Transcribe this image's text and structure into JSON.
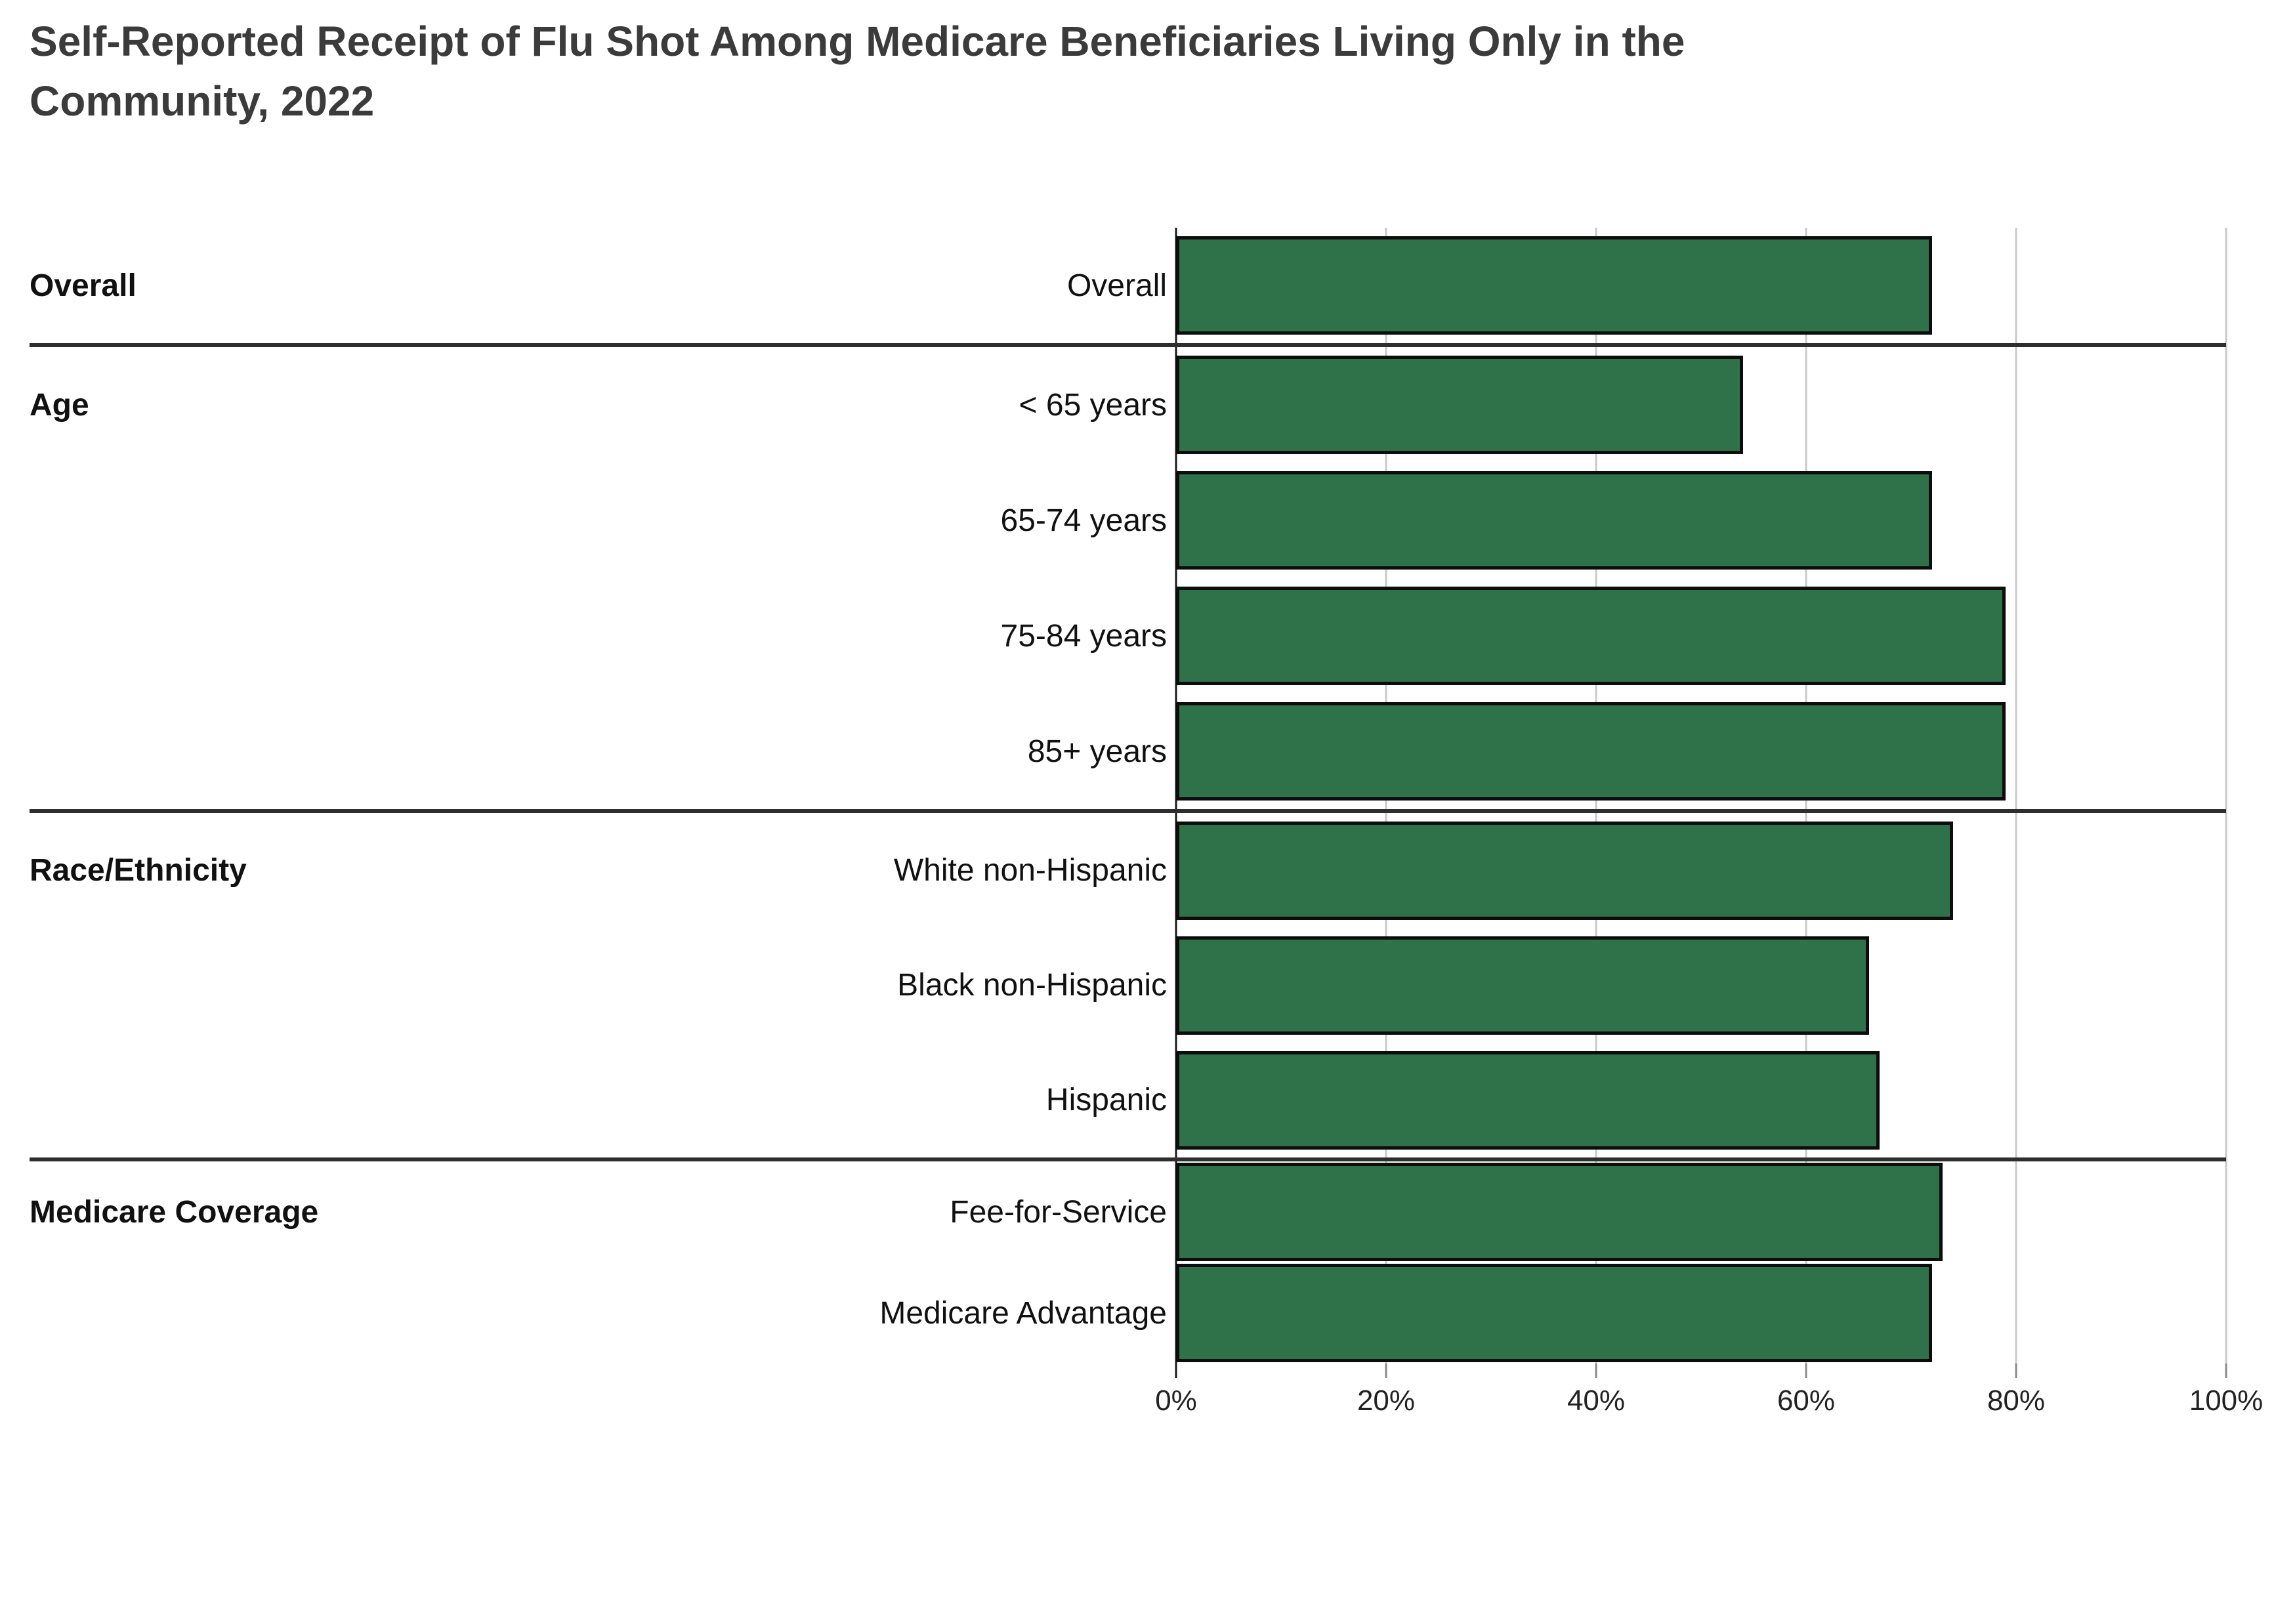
{
  "chart_data": {
    "type": "bar",
    "orientation": "horizontal",
    "title": "Self-Reported Receipt of Flu Shot Among Medicare Beneficiaries Living Only in the Community, 2022",
    "title_lines": [
      "Self-Reported Receipt of Flu Shot Among Medicare Beneficiaries Living Only in the",
      "Community, 2022"
    ],
    "xlabel": "",
    "ylabel": "",
    "x_axis": {
      "range": [
        0,
        100
      ],
      "unit": "%",
      "grid": true,
      "tick_labels": [
        "0%",
        "20%",
        "40%",
        "60%",
        "80%",
        "100%"
      ],
      "tick_values": [
        0,
        20,
        40,
        60,
        80,
        100
      ]
    },
    "categories": [
      "Overall",
      "< 65 years",
      "65-74 years",
      "75-84 years",
      "85+ years",
      "White non-Hispanic",
      "Black non-Hispanic",
      "Hispanic",
      "Fee-for-Service",
      "Medicare Advantage"
    ],
    "values": [
      72,
      54,
      72,
      79,
      79,
      74,
      66,
      67,
      73,
      72
    ],
    "groups": [
      {
        "label": "Overall",
        "rows": [
          {
            "label": "Overall",
            "value": 72
          }
        ]
      },
      {
        "label": "Age",
        "rows": [
          {
            "label": "< 65 years",
            "value": 54
          },
          {
            "label": "65-74 years",
            "value": 72
          },
          {
            "label": "75-84 years",
            "value": 79
          },
          {
            "label": "85+ years",
            "value": 79
          }
        ]
      },
      {
        "label": "Race/Ethnicity",
        "rows": [
          {
            "label": "White non-Hispanic",
            "value": 74
          },
          {
            "label": "Black non-Hispanic",
            "value": 66
          },
          {
            "label": "Hispanic",
            "value": 67
          }
        ]
      },
      {
        "label": "Medicare Coverage",
        "rows": [
          {
            "label": "Fee-for-Service",
            "value": 73
          },
          {
            "label": "Medicare Advantage",
            "value": 72
          }
        ]
      }
    ],
    "colors": {
      "bar_fill": "#2F7249",
      "bar_border": "#0d0d0d",
      "gridline": "#c9c9c9",
      "axis_line": "#1a1a1a",
      "section_divider": "#2e2e2e",
      "title_text": "#3b3b3b",
      "label_text": "#111111"
    },
    "legend": {
      "visible": false
    }
  }
}
